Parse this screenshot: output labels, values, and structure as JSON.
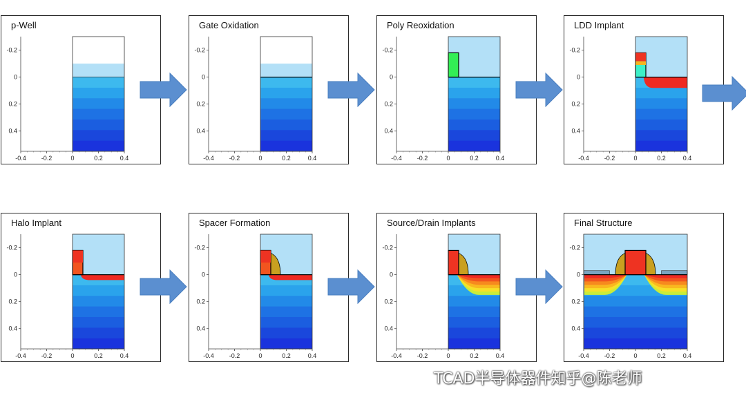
{
  "panels": [
    {
      "title": "p-Well",
      "stage": "pwell"
    },
    {
      "title": "Gate Oxidation",
      "stage": "gateox"
    },
    {
      "title": "Poly Reoxidation",
      "stage": "polyreox"
    },
    {
      "title": "LDD Implant",
      "stage": "ldd"
    },
    {
      "title": "Halo Implant",
      "stage": "halo"
    },
    {
      "title": "Spacer Formation",
      "stage": "spacer"
    },
    {
      "title": "Source/Drain Implants",
      "stage": "sd"
    },
    {
      "title": "Final Structure",
      "stage": "final"
    }
  ],
  "axes": {
    "x_ticks": [
      "-0.4",
      "-0.2",
      "0",
      "0.2",
      "0.4"
    ],
    "y_ticks": [
      "-0.2",
      "0",
      "0.2",
      "0.4"
    ],
    "final_y_ticks": [
      "-0.2",
      "0",
      "0.2",
      "0.4"
    ]
  },
  "watermark": {
    "text": "TCAD半导体器件知乎@陈老师"
  },
  "colors": {
    "oxide": "#b3e0f7",
    "poly": "#33ee55",
    "poly_doped": "#ee3322",
    "spacer": "#c9a020",
    "silicon_deep": "#1a33dd",
    "arrow": "#5b8fd0"
  },
  "icons": {
    "arrow": "right-arrow-icon",
    "watermark": "wechat-icon"
  }
}
